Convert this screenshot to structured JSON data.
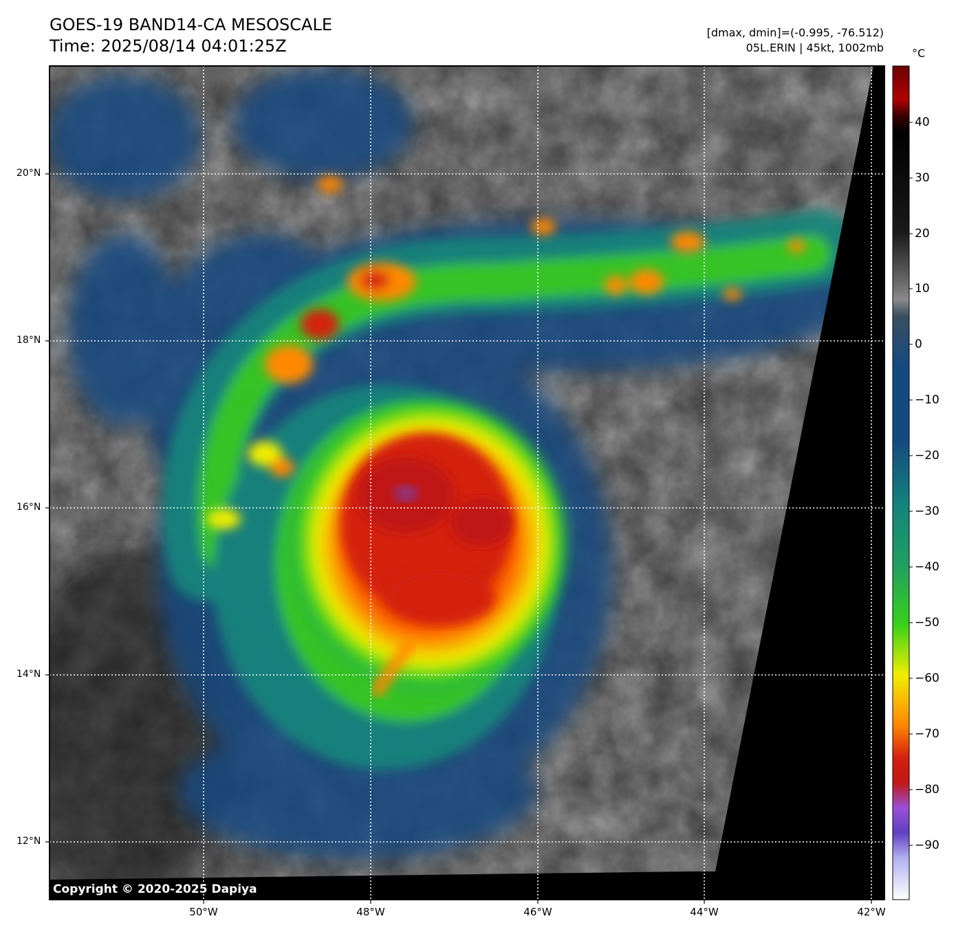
{
  "title": {
    "line1": "GOES-19 BAND14-CA MESOSCALE",
    "line2": "Time: 2025/08/14 04:01:25Z"
  },
  "info": {
    "range": "[dmax, dmin]=(-0.995, -76.512)",
    "storm": "05L.ERIN | 45kt, 1002mb"
  },
  "copyright": "Copyright © 2020-2025 Dapiya",
  "colorbar": {
    "unit": "°C",
    "ticks": [
      "40",
      "30",
      "20",
      "10",
      "0",
      "−10",
      "−20",
      "−30",
      "−40",
      "−50",
      "−60",
      "−70",
      "−80",
      "−90"
    ],
    "range": [
      -100,
      50
    ],
    "colors": {
      "cold_end": "#ffffff",
      "violet": "#7744cc",
      "red": "#d42010",
      "orange": "#ff8800",
      "yellow": "#f0ee00",
      "green": "#38d01a",
      "teal": "#14867c",
      "blue": "#154a80",
      "gray": "#8a8a8a",
      "black": "#000000",
      "warm_end": "#6a0000"
    }
  },
  "map": {
    "lat_labels": [
      "20°N",
      "18°N",
      "16°N",
      "14°N",
      "12°N"
    ],
    "lon_labels": [
      "50°W",
      "48°W",
      "46°W",
      "44°W",
      "42°W"
    ],
    "storm_name": "05L.ERIN"
  }
}
